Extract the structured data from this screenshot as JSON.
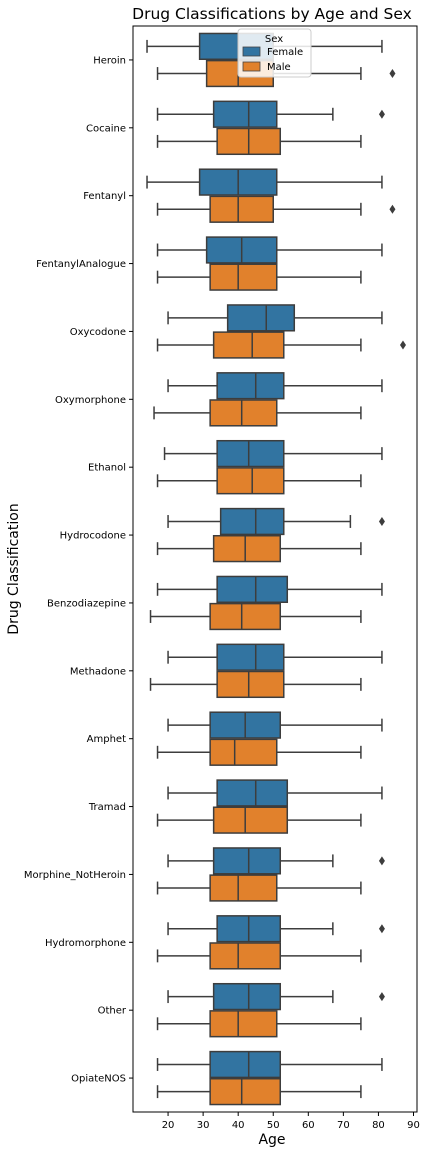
{
  "chart_data": {
    "type": "boxplot",
    "orientation": "horizontal",
    "title": "Drug Classifications by Age and Sex",
    "xlabel": "Age",
    "ylabel": "Drug Classification",
    "xlim": [
      10,
      91
    ],
    "xticks": [
      20,
      30,
      40,
      50,
      60,
      70,
      80,
      90
    ],
    "grid": false,
    "legend": {
      "title": "Sex",
      "placement": "top-center"
    },
    "series": [
      {
        "name": "Female",
        "color": "#3274a1"
      },
      {
        "name": "Male",
        "color": "#e1812c"
      }
    ],
    "categories": [
      "Heroin",
      "Cocaine",
      "Fentanyl",
      "FentanylAnalogue",
      "Oxycodone",
      "Oxymorphone",
      "Ethanol",
      "Hydrocodone",
      "Benzodiazepine",
      "Methadone",
      "Amphet",
      "Tramad",
      "Morphine_NotHeroin",
      "Hydromorphone",
      "Other",
      "OpiateNOS"
    ],
    "boxes": [
      {
        "female": {
          "whislo": 14,
          "q1": 29,
          "med": 40,
          "q3": 50,
          "whishi": 81,
          "fliers": []
        },
        "male": {
          "whislo": 17,
          "q1": 31,
          "med": 40,
          "q3": 50,
          "whishi": 75,
          "fliers": [
            84
          ]
        }
      },
      {
        "female": {
          "whislo": 17,
          "q1": 33,
          "med": 43,
          "q3": 51,
          "whishi": 67,
          "fliers": [
            81
          ]
        },
        "male": {
          "whislo": 17,
          "q1": 34,
          "med": 43,
          "q3": 52,
          "whishi": 75,
          "fliers": []
        }
      },
      {
        "female": {
          "whislo": 14,
          "q1": 29,
          "med": 40,
          "q3": 51,
          "whishi": 81,
          "fliers": []
        },
        "male": {
          "whislo": 17,
          "q1": 32,
          "med": 40,
          "q3": 50,
          "whishi": 75,
          "fliers": [
            84
          ]
        }
      },
      {
        "female": {
          "whislo": 17,
          "q1": 31,
          "med": 41,
          "q3": 51,
          "whishi": 81,
          "fliers": []
        },
        "male": {
          "whislo": 17,
          "q1": 32,
          "med": 40,
          "q3": 51,
          "whishi": 75,
          "fliers": []
        }
      },
      {
        "female": {
          "whislo": 20,
          "q1": 37,
          "med": 48,
          "q3": 56,
          "whishi": 81,
          "fliers": []
        },
        "male": {
          "whislo": 17,
          "q1": 33,
          "med": 44,
          "q3": 53,
          "whishi": 75,
          "fliers": [
            87
          ]
        }
      },
      {
        "female": {
          "whislo": 20,
          "q1": 34,
          "med": 45,
          "q3": 53,
          "whishi": 81,
          "fliers": []
        },
        "male": {
          "whislo": 16,
          "q1": 32,
          "med": 41,
          "q3": 51,
          "whishi": 75,
          "fliers": []
        }
      },
      {
        "female": {
          "whislo": 19,
          "q1": 34,
          "med": 43,
          "q3": 53,
          "whishi": 81,
          "fliers": []
        },
        "male": {
          "whislo": 17,
          "q1": 34,
          "med": 44,
          "q3": 53,
          "whishi": 75,
          "fliers": []
        }
      },
      {
        "female": {
          "whislo": 20,
          "q1": 35,
          "med": 45,
          "q3": 53,
          "whishi": 72,
          "fliers": [
            81
          ]
        },
        "male": {
          "whislo": 17,
          "q1": 33,
          "med": 42,
          "q3": 52,
          "whishi": 75,
          "fliers": []
        }
      },
      {
        "female": {
          "whislo": 17,
          "q1": 34,
          "med": 45,
          "q3": 54,
          "whishi": 81,
          "fliers": []
        },
        "male": {
          "whislo": 15,
          "q1": 32,
          "med": 41,
          "q3": 52,
          "whishi": 75,
          "fliers": []
        }
      },
      {
        "female": {
          "whislo": 20,
          "q1": 34,
          "med": 45,
          "q3": 53,
          "whishi": 81,
          "fliers": []
        },
        "male": {
          "whislo": 15,
          "q1": 34,
          "med": 43,
          "q3": 53,
          "whishi": 75,
          "fliers": []
        }
      },
      {
        "female": {
          "whislo": 20,
          "q1": 32,
          "med": 42,
          "q3": 52,
          "whishi": 81,
          "fliers": []
        },
        "male": {
          "whislo": 17,
          "q1": 32,
          "med": 39,
          "q3": 51,
          "whishi": 75,
          "fliers": []
        }
      },
      {
        "female": {
          "whislo": 20,
          "q1": 34,
          "med": 45,
          "q3": 54,
          "whishi": 81,
          "fliers": []
        },
        "male": {
          "whislo": 17,
          "q1": 33,
          "med": 42,
          "q3": 54,
          "whishi": 75,
          "fliers": []
        }
      },
      {
        "female": {
          "whislo": 20,
          "q1": 33,
          "med": 43,
          "q3": 52,
          "whishi": 67,
          "fliers": [
            81
          ]
        },
        "male": {
          "whislo": 17,
          "q1": 32,
          "med": 40,
          "q3": 51,
          "whishi": 75,
          "fliers": []
        }
      },
      {
        "female": {
          "whislo": 20,
          "q1": 34,
          "med": 43,
          "q3": 52,
          "whishi": 67,
          "fliers": [
            81
          ]
        },
        "male": {
          "whislo": 17,
          "q1": 32,
          "med": 40,
          "q3": 52,
          "whishi": 75,
          "fliers": []
        }
      },
      {
        "female": {
          "whislo": 20,
          "q1": 33,
          "med": 43,
          "q3": 52,
          "whishi": 67,
          "fliers": [
            81
          ]
        },
        "male": {
          "whislo": 17,
          "q1": 32,
          "med": 40,
          "q3": 51,
          "whishi": 75,
          "fliers": []
        }
      },
      {
        "female": {
          "whislo": 17,
          "q1": 32,
          "med": 43,
          "q3": 52,
          "whishi": 81,
          "fliers": []
        },
        "male": {
          "whislo": 17,
          "q1": 32,
          "med": 41,
          "q3": 52,
          "whishi": 75,
          "fliers": []
        }
      }
    ]
  }
}
